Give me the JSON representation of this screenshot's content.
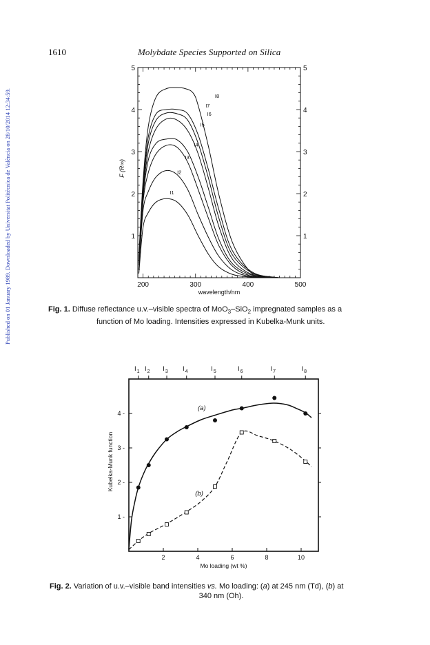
{
  "side_note": "Published on 01 January 1989. Downloaded by Universitat Politècnica de València on 28/10/2014 12:34:59.",
  "header": {
    "page_number": "1610",
    "running_title": "Molybdate Species Supported on Silica"
  },
  "chart_data": [
    {
      "type": "line",
      "xlabel": "wavelength/nm",
      "ylabel": "F (R∞)",
      "xlim": [
        190,
        500
      ],
      "ylim": [
        0,
        5
      ],
      "x_ticks": [
        "200",
        "300",
        "400",
        "500"
      ],
      "y_ticks": [
        "1",
        "2",
        "3",
        "4",
        "5"
      ],
      "y_ticks_right": [
        "1",
        "2",
        "3",
        "4",
        "5"
      ],
      "series": [
        {
          "name": "I1",
          "points": [
            [
              192,
              0.1
            ],
            [
              200,
              1.2
            ],
            [
              210,
              1.55
            ],
            [
              225,
              1.8
            ],
            [
              245,
              1.88
            ],
            [
              265,
              1.8
            ],
            [
              285,
              1.5
            ],
            [
              305,
              1.0
            ],
            [
              325,
              0.55
            ],
            [
              345,
              0.25
            ],
            [
              370,
              0.08
            ],
            [
              400,
              0.02
            ],
            [
              440,
              0
            ]
          ]
        },
        {
          "name": "I2",
          "points": [
            [
              192,
              0.2
            ],
            [
              200,
              1.6
            ],
            [
              210,
              2.05
            ],
            [
              225,
              2.4
            ],
            [
              245,
              2.55
            ],
            [
              265,
              2.45
            ],
            [
              285,
              2.1
            ],
            [
              305,
              1.5
            ],
            [
              325,
              0.95
            ],
            [
              345,
              0.5
            ],
            [
              370,
              0.18
            ],
            [
              400,
              0.04
            ],
            [
              440,
              0
            ]
          ]
        },
        {
          "name": "I3",
          "points": [
            [
              192,
              0.3
            ],
            [
              200,
              1.8
            ],
            [
              210,
              2.5
            ],
            [
              225,
              2.95
            ],
            [
              245,
              3.15
            ],
            [
              265,
              3.1
            ],
            [
              285,
              2.75
            ],
            [
              305,
              2.1
            ],
            [
              325,
              1.4
            ],
            [
              345,
              0.75
            ],
            [
              370,
              0.28
            ],
            [
              400,
              0.06
            ],
            [
              440,
              0
            ]
          ]
        },
        {
          "name": "I4",
          "points": [
            [
              192,
              0.35
            ],
            [
              200,
              1.9
            ],
            [
              210,
              2.8
            ],
            [
              225,
              3.2
            ],
            [
              245,
              3.3
            ],
            [
              265,
              3.28
            ],
            [
              285,
              3.0
            ],
            [
              305,
              2.4
            ],
            [
              325,
              1.65
            ],
            [
              345,
              0.9
            ],
            [
              370,
              0.34
            ],
            [
              405,
              0.07
            ],
            [
              445,
              0
            ]
          ]
        },
        {
          "name": "I5",
          "points": [
            [
              192,
              0.4
            ],
            [
              200,
              2.0
            ],
            [
              210,
              3.0
            ],
            [
              225,
              3.55
            ],
            [
              245,
              3.78
            ],
            [
              265,
              3.75
            ],
            [
              285,
              3.5
            ],
            [
              305,
              2.95
            ],
            [
              325,
              2.1
            ],
            [
              345,
              1.2
            ],
            [
              370,
              0.45
            ],
            [
              405,
              0.09
            ],
            [
              450,
              0
            ]
          ]
        },
        {
          "name": "I6",
          "points": [
            [
              192,
              0.4
            ],
            [
              200,
              2.1
            ],
            [
              210,
              3.2
            ],
            [
              225,
              3.75
            ],
            [
              245,
              3.92
            ],
            [
              265,
              3.9
            ],
            [
              285,
              3.75
            ],
            [
              305,
              3.2
            ],
            [
              325,
              2.35
            ],
            [
              345,
              1.4
            ],
            [
              370,
              0.55
            ],
            [
              410,
              0.1
            ],
            [
              455,
              0
            ]
          ]
        },
        {
          "name": "I7",
          "points": [
            [
              192,
              0.45
            ],
            [
              200,
              2.2
            ],
            [
              210,
              3.35
            ],
            [
              225,
              3.9
            ],
            [
              245,
              4.0
            ],
            [
              265,
              4.0
            ],
            [
              285,
              3.9
            ],
            [
              305,
              3.4
            ],
            [
              325,
              2.55
            ],
            [
              345,
              1.6
            ],
            [
              370,
              0.65
            ],
            [
              410,
              0.12
            ],
            [
              460,
              0
            ]
          ]
        },
        {
          "name": "I8",
          "points": [
            [
              192,
              0.5
            ],
            [
              200,
              2.3
            ],
            [
              210,
              3.6
            ],
            [
              225,
              4.3
            ],
            [
              245,
              4.5
            ],
            [
              265,
              4.52
            ],
            [
              280,
              4.5
            ],
            [
              295,
              4.4
            ],
            [
              305,
              4.1
            ],
            [
              325,
              3.1
            ],
            [
              345,
              1.95
            ],
            [
              370,
              0.85
            ],
            [
              400,
              0.2
            ],
            [
              420,
              0.06
            ],
            [
              460,
              0
            ]
          ]
        }
      ]
    },
    {
      "type": "scatter",
      "xlabel": "Mo loading (wt %)",
      "ylabel": "Kubelka-Munk function",
      "xlim": [
        0,
        11
      ],
      "ylim": [
        0,
        5
      ],
      "x_ticks": [
        "2",
        "4",
        "6",
        "8",
        "10"
      ],
      "y_ticks": [
        "1",
        "2",
        "3",
        "4"
      ],
      "top_labels": [
        {
          "text": "I",
          "sub": "1",
          "x": 0.55
        },
        {
          "text": "I",
          "sub": "2",
          "x": 1.15
        },
        {
          "text": "I",
          "sub": "3",
          "x": 2.2
        },
        {
          "text": "I",
          "sub": "4",
          "x": 3.35
        },
        {
          "text": "I",
          "sub": "5",
          "x": 5.0
        },
        {
          "text": "I",
          "sub": "6",
          "x": 6.55
        },
        {
          "text": "I",
          "sub": "7",
          "x": 8.45
        },
        {
          "text": "I",
          "sub": "8",
          "x": 10.25
        }
      ],
      "series": [
        {
          "name": "(a)",
          "marker": "filled-circle",
          "line": "solid",
          "x": [
            0.55,
            1.15,
            2.2,
            3.35,
            5.0,
            6.55,
            8.45,
            10.25
          ],
          "y": [
            1.85,
            2.5,
            3.25,
            3.6,
            3.8,
            4.15,
            4.45,
            4.0
          ],
          "curve": [
            [
              0,
              0.05
            ],
            [
              0.15,
              0.9
            ],
            [
              0.35,
              1.45
            ],
            [
              0.55,
              1.85
            ],
            [
              0.85,
              2.25
            ],
            [
              1.15,
              2.55
            ],
            [
              1.6,
              2.9
            ],
            [
              2.2,
              3.25
            ],
            [
              2.8,
              3.47
            ],
            [
              3.35,
              3.62
            ],
            [
              4.2,
              3.82
            ],
            [
              5.0,
              3.95
            ],
            [
              6.0,
              4.1
            ],
            [
              6.55,
              4.15
            ],
            [
              7.5,
              4.25
            ],
            [
              8.4,
              4.3
            ],
            [
              9.2,
              4.25
            ],
            [
              9.8,
              4.13
            ],
            [
              10.25,
              4.02
            ],
            [
              10.6,
              3.88
            ]
          ]
        },
        {
          "name": "(b)",
          "marker": "open-square",
          "line": "dashed",
          "x": [
            0.55,
            1.15,
            2.2,
            3.35,
            5.0,
            6.55,
            8.45,
            10.25
          ],
          "y": [
            0.3,
            0.5,
            0.78,
            1.13,
            1.88,
            3.45,
            3.2,
            2.6
          ],
          "curve": [
            [
              0,
              0.05
            ],
            [
              0.55,
              0.3
            ],
            [
              1.15,
              0.52
            ],
            [
              2.2,
              0.8
            ],
            [
              3.35,
              1.15
            ],
            [
              4.2,
              1.45
            ],
            [
              5.0,
              1.88
            ],
            [
              5.7,
              2.6
            ],
            [
              6.55,
              3.45
            ],
            [
              7.5,
              3.35
            ],
            [
              8.45,
              3.2
            ],
            [
              9.4,
              2.95
            ],
            [
              10.25,
              2.62
            ],
            [
              10.6,
              2.45
            ]
          ]
        }
      ]
    }
  ],
  "fig1_labels": [
    {
      "name": "I1",
      "text": "I1",
      "lx": 251,
      "ly": 1.98
    },
    {
      "name": "I2",
      "text": "I2",
      "lx": 265,
      "ly": 2.47
    },
    {
      "name": "I3",
      "text": "I3",
      "lx": 280,
      "ly": 2.82
    },
    {
      "name": "I4",
      "text": "I4",
      "lx": 297,
      "ly": 3.12
    },
    {
      "name": "I5",
      "text": "I5",
      "lx": 309,
      "ly": 3.6
    },
    {
      "name": "I6",
      "text": "I6",
      "lx": 322,
      "ly": 3.85
    },
    {
      "name": "I7",
      "text": "I7",
      "lx": 319,
      "ly": 4.05
    },
    {
      "name": "I8",
      "text": "I8",
      "lx": 337,
      "ly": 4.28
    }
  ],
  "fig1_caption": {
    "label": "Fig. 1.",
    "line1_a": "Diffuse reflectance u.v.–visible spectra of MoO",
    "sub3": "3",
    "line1_b": "–SiO",
    "sub2": "2",
    "line1_c": " impregnated samples as a",
    "line2": "function of Mo loading. Intensities expressed in Kubelka-Munk units."
  },
  "fig2_caption": {
    "label": "Fig. 2.",
    "text_a": "Variation of u.v.–visible band intensities ",
    "vs": "vs.",
    "text_b": " Mo loading: (",
    "a": "a",
    "text_c": ") at 245 nm (Td), (",
    "b": "b",
    "text_d": ") at",
    "line2": "340 nm (Oh)."
  },
  "fig2_curve_labels": {
    "a": "(a)",
    "b": "(b)"
  }
}
